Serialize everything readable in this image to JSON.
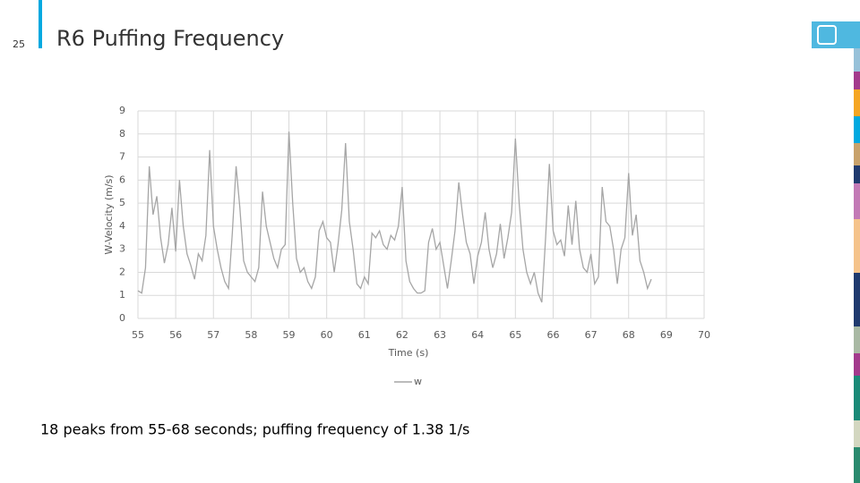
{
  "slide": {
    "page_number": "25",
    "title": "R6 Puffing Frequency",
    "caption": "18 peaks from 55-68 seconds; puffing frequency of 1.38 1/s"
  },
  "chart_data": {
    "type": "line",
    "xlabel": "Time (s)",
    "ylabel": "W-Velocity (m/s)",
    "xlim": [
      55,
      70
    ],
    "xticks": [
      55,
      56,
      57,
      58,
      59,
      60,
      61,
      62,
      63,
      64,
      65,
      66,
      67,
      68,
      69,
      70
    ],
    "ylim": [
      0,
      9
    ],
    "yticks": [
      0,
      1,
      2,
      3,
      4,
      5,
      6,
      7,
      8,
      9
    ],
    "grid": true,
    "legend": "bottom",
    "x": [
      55.0,
      55.1,
      55.2,
      55.3,
      55.4,
      55.5,
      55.6,
      55.7,
      55.8,
      55.9,
      56.0,
      56.1,
      56.2,
      56.3,
      56.4,
      56.5,
      56.6,
      56.7,
      56.8,
      56.9,
      57.0,
      57.1,
      57.2,
      57.3,
      57.4,
      57.5,
      57.6,
      57.7,
      57.8,
      57.9,
      58.0,
      58.1,
      58.2,
      58.3,
      58.4,
      58.5,
      58.6,
      58.7,
      58.8,
      58.9,
      59.0,
      59.1,
      59.2,
      59.3,
      59.4,
      59.5,
      59.6,
      59.7,
      59.8,
      59.9,
      60.0,
      60.1,
      60.2,
      60.3,
      60.4,
      60.5,
      60.6,
      60.7,
      60.8,
      60.9,
      61.0,
      61.1,
      61.2,
      61.3,
      61.4,
      61.5,
      61.6,
      61.7,
      61.8,
      61.9,
      62.0,
      62.1,
      62.2,
      62.3,
      62.4,
      62.5,
      62.6,
      62.7,
      62.8,
      62.9,
      63.0,
      63.1,
      63.2,
      63.3,
      63.4,
      63.5,
      63.6,
      63.7,
      63.8,
      63.9,
      64.0,
      64.1,
      64.2,
      64.3,
      64.4,
      64.5,
      64.6,
      64.7,
      64.8,
      64.9,
      65.0,
      65.1,
      65.2,
      65.3,
      65.4,
      65.5,
      65.6,
      65.7,
      65.8,
      65.9,
      66.0,
      66.1,
      66.2,
      66.3,
      66.4,
      66.5,
      66.6,
      66.7,
      66.8,
      66.9,
      67.0,
      67.1,
      67.2,
      67.3,
      67.4,
      67.5,
      67.6,
      67.7,
      67.8,
      67.9,
      68.0,
      68.1,
      68.2,
      68.3,
      68.4,
      68.5,
      68.6
    ],
    "series": [
      {
        "name": "w",
        "color": "#a6a6a6",
        "values": [
          1.2,
          1.1,
          2.2,
          6.6,
          4.5,
          5.3,
          3.5,
          2.4,
          3.2,
          4.8,
          2.9,
          6.0,
          4.0,
          2.8,
          2.3,
          1.7,
          2.8,
          2.5,
          3.6,
          7.3,
          4.0,
          3.0,
          2.2,
          1.6,
          1.3,
          3.7,
          6.6,
          4.8,
          2.5,
          2.0,
          1.8,
          1.6,
          2.2,
          5.5,
          4.0,
          3.3,
          2.6,
          2.2,
          3.0,
          3.2,
          8.1,
          5.0,
          2.6,
          2.0,
          2.2,
          1.6,
          1.3,
          1.8,
          3.8,
          4.2,
          3.5,
          3.3,
          2.0,
          3.2,
          4.7,
          7.6,
          4.2,
          3.0,
          1.5,
          1.3,
          1.8,
          1.5,
          3.7,
          3.5,
          3.8,
          3.2,
          3.0,
          3.6,
          3.4,
          4.0,
          5.7,
          2.5,
          1.6,
          1.3,
          1.1,
          1.1,
          1.2,
          3.3,
          3.9,
          3.0,
          3.3,
          2.3,
          1.3,
          2.5,
          3.8,
          5.9,
          4.5,
          3.3,
          2.8,
          1.5,
          2.7,
          3.3,
          4.6,
          3.0,
          2.2,
          2.8,
          4.1,
          2.6,
          3.5,
          4.6,
          7.8,
          5.0,
          3.0,
          2.0,
          1.5,
          2.0,
          1.1,
          0.7,
          3.5,
          6.7,
          3.8,
          3.2,
          3.4,
          2.7,
          4.9,
          3.2,
          5.1,
          3.0,
          2.2,
          2.0,
          2.8,
          1.5,
          1.8,
          5.7,
          4.2,
          4.0,
          3.0,
          1.5,
          3.0,
          3.5,
          6.3,
          3.6,
          4.5,
          2.5,
          2.0,
          1.3,
          1.7
        ]
      }
    ]
  }
}
